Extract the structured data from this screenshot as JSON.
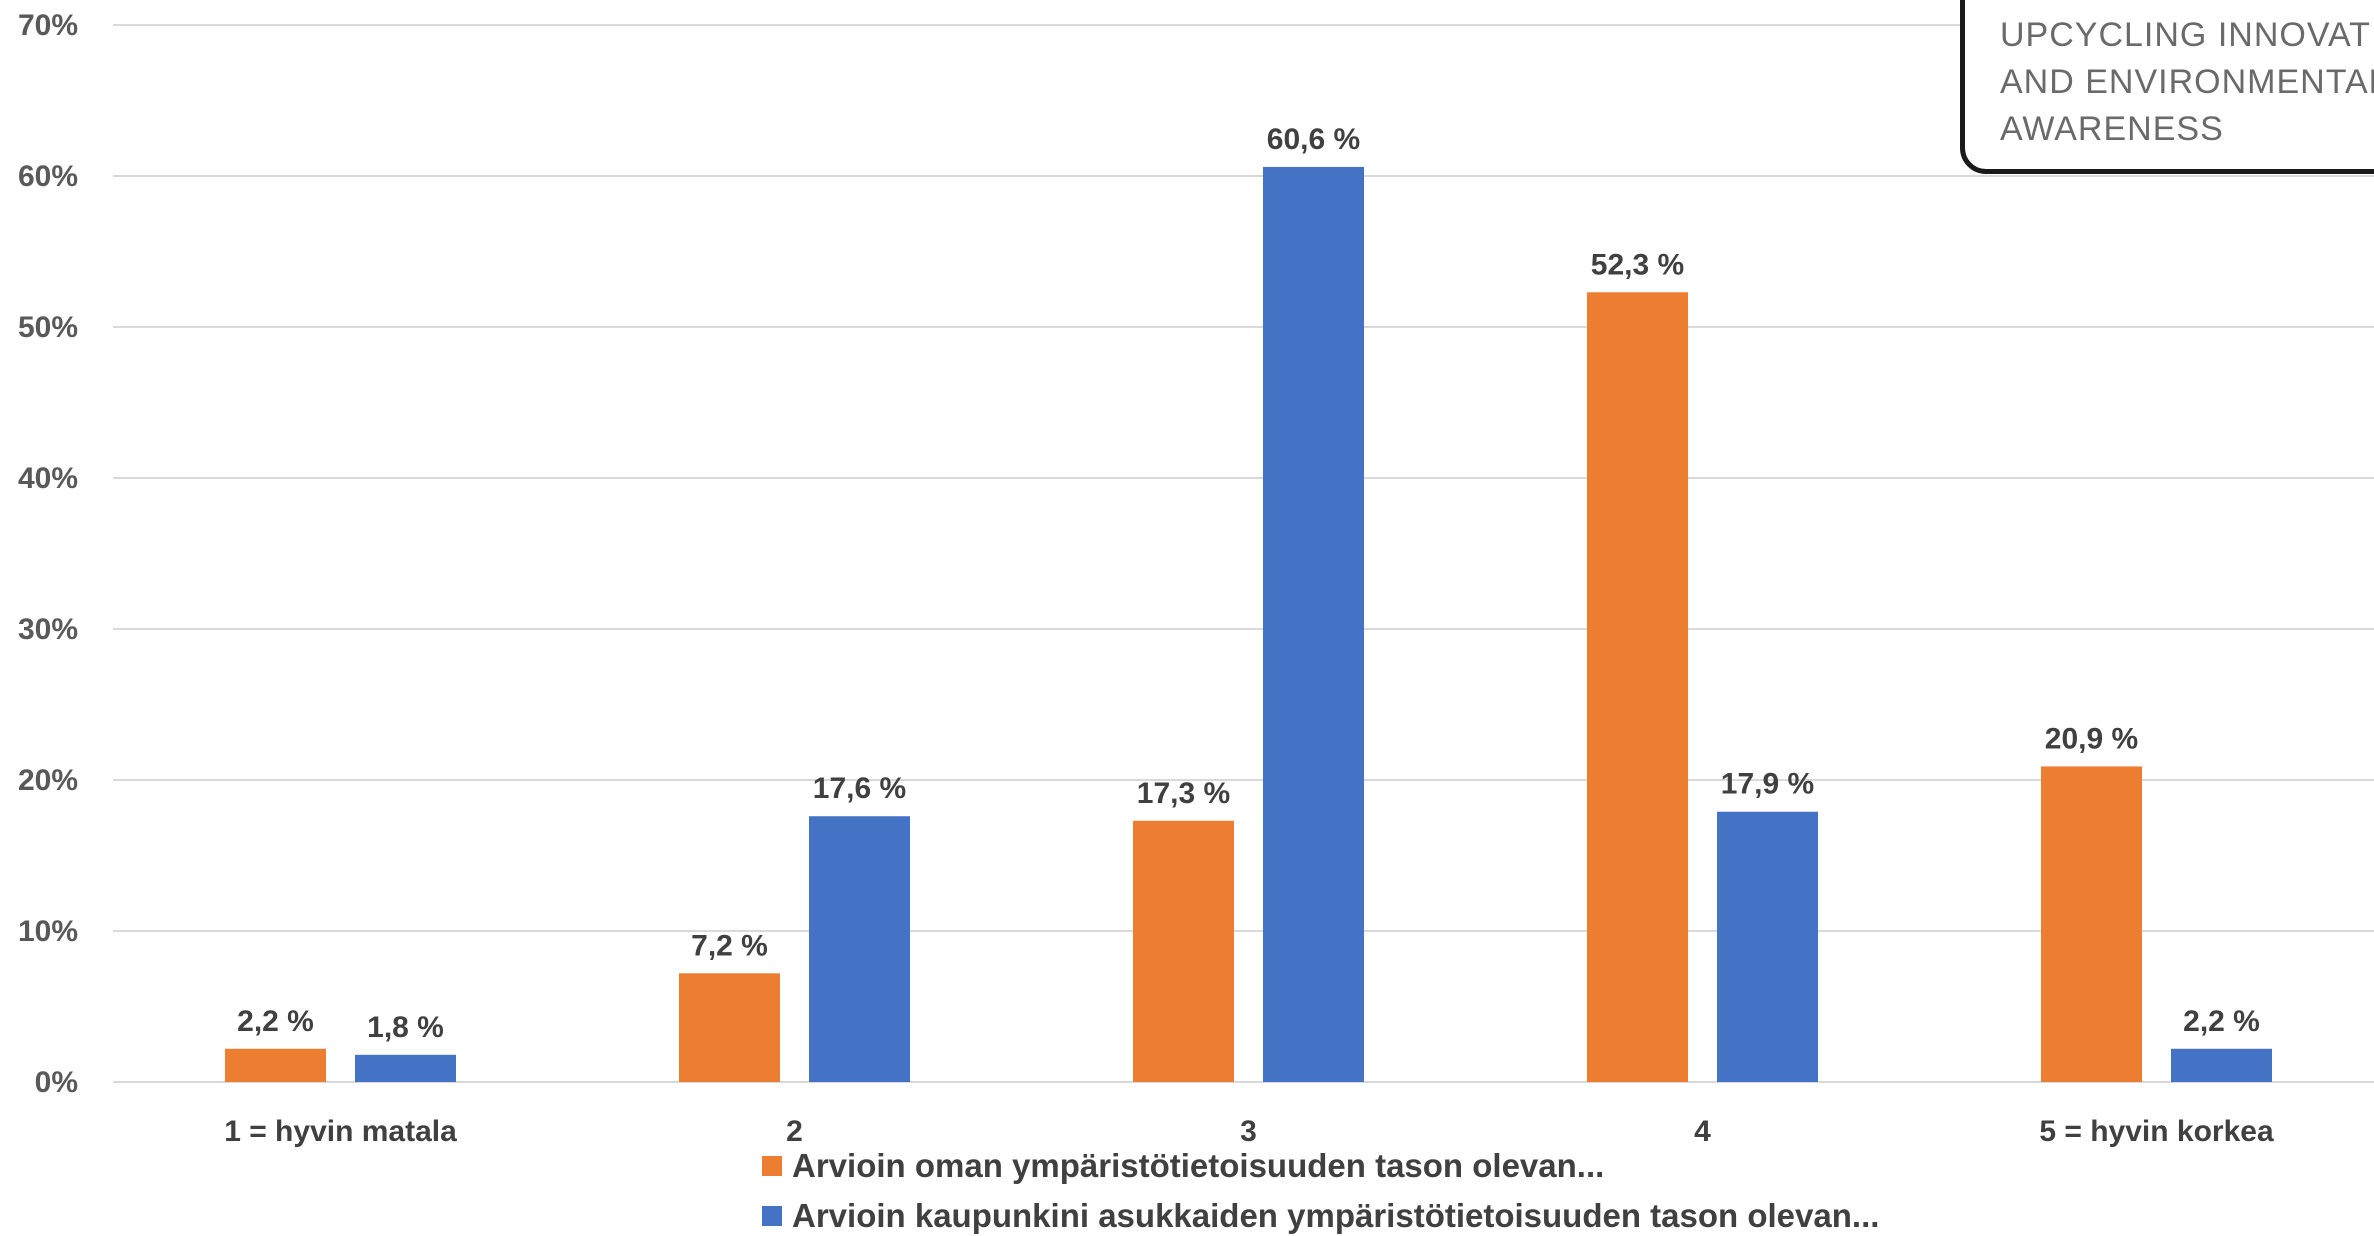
{
  "logo": {
    "lines": [
      "UPCYCLING INNOVATIO",
      "AND ENVIRONMENTAL",
      "AWARENESS"
    ]
  },
  "chart_data": {
    "type": "bar",
    "categories": [
      "1 = hyvin matala",
      "2",
      "3",
      "4",
      "5 = hyvin korkea"
    ],
    "series": [
      {
        "name": "Arvioin oman ympäristötietoisuuden tason olevan...",
        "color": "#ED7D31",
        "values": [
          2.2,
          7.2,
          17.3,
          52.3,
          20.9
        ],
        "labels": [
          "2,2 %",
          "7,2 %",
          "17,3 %",
          "52,3 %",
          "20,9 %"
        ]
      },
      {
        "name": "Arvioin kaupunkini asukkaiden ympäristötietoisuuden tason olevan...",
        "color": "#4472C4",
        "values": [
          1.8,
          17.6,
          60.6,
          17.9,
          2.2
        ],
        "labels": [
          "1,8 %",
          "17,6 %",
          "60,6 %",
          "17,9 %",
          "2,2 %"
        ]
      }
    ],
    "yticks": [
      "0%",
      "10%",
      "20%",
      "30%",
      "40%",
      "50%",
      "60%",
      "70%"
    ],
    "ylim": [
      0,
      70
    ],
    "grid": true,
    "legend_position": "bottom",
    "gridline_color": "#D9D9D9"
  }
}
